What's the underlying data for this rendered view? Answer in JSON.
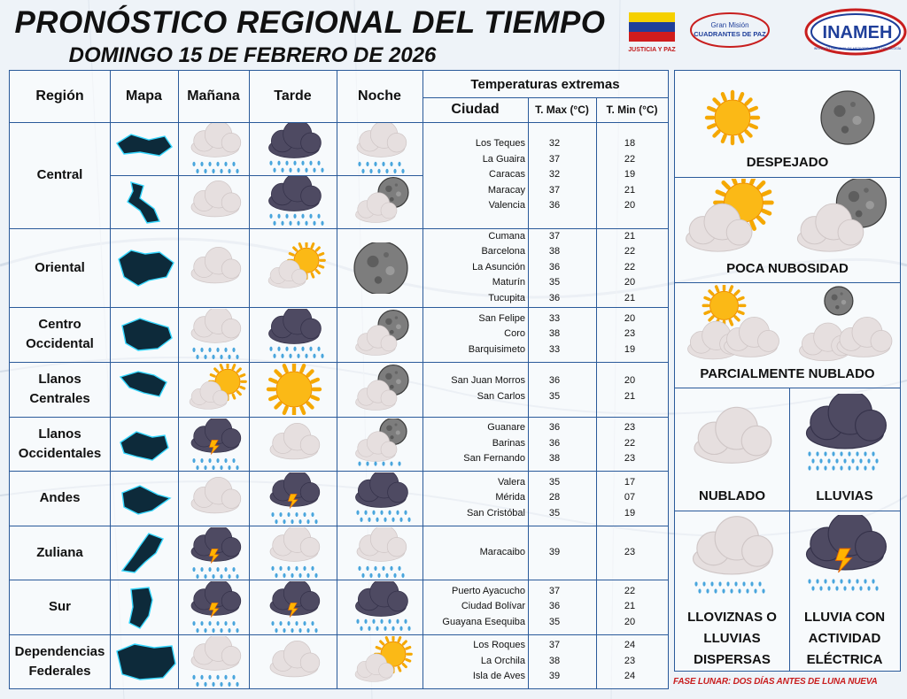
{
  "header": {
    "title": "PRONÓSTICO REGIONAL DEL TIEMPO",
    "date": "DOMINGO 15 DE FEBRERO DE 2026"
  },
  "logos": {
    "logo1_text": "JUSTICIA Y PAZ",
    "logo2_text_top": "Gran Misión",
    "logo2_text_bottom": "CUADRANTES DE PAZ",
    "logo3_text": "INAMEH",
    "logo3_sub": "INSTITUTO NACIONAL DE METEOROLOGÍA E HIDROLOGÍA"
  },
  "table_headers": {
    "region": "Región",
    "map": "Mapa",
    "morning": "Mañana",
    "afternoon": "Tarde",
    "night": "Noche",
    "extremes": "Temperaturas  extremas",
    "city": "Ciudad",
    "tmax": "T. Max (°C)",
    "tmin": "T. Min (°C)"
  },
  "regions": [
    {
      "name": "Central",
      "cities": [
        "Los Teques",
        "La Guaira",
        "Caracas",
        "Maracay",
        "Valencia"
      ],
      "tmax": [
        "32",
        "37",
        "32",
        "37",
        "36"
      ],
      "tmin": [
        "18",
        "22",
        "19",
        "21",
        "20"
      ]
    },
    {
      "name": "Oriental",
      "cities": [
        "Cumana",
        "Barcelona",
        "La Asunción",
        "Maturín",
        "Tucupita"
      ],
      "tmax": [
        "37",
        "38",
        "36",
        "35",
        "36"
      ],
      "tmin": [
        "21",
        "22",
        "22",
        "20",
        "21"
      ]
    },
    {
      "name": "Centro Occidental",
      "cities": [
        "San Felipe",
        "Coro",
        "Barquisimeto"
      ],
      "tmax": [
        "33",
        "38",
        "33"
      ],
      "tmin": [
        "20",
        "23",
        "19"
      ]
    },
    {
      "name": "Llanos Centrales",
      "cities": [
        "San Juan Morros",
        "San Carlos"
      ],
      "tmax": [
        "36",
        "35"
      ],
      "tmin": [
        "20",
        "21"
      ]
    },
    {
      "name": "Llanos Occidentales",
      "cities": [
        "Guanare",
        "Barinas",
        "San Fernando"
      ],
      "tmax": [
        "36",
        "36",
        "38"
      ],
      "tmin": [
        "23",
        "22",
        "23"
      ]
    },
    {
      "name": "Andes",
      "cities": [
        "Valera",
        "Mérida",
        "San Cristóbal"
      ],
      "tmax": [
        "35",
        "28",
        "35"
      ],
      "tmin": [
        "17",
        "07",
        "19"
      ]
    },
    {
      "name": "Zuliana",
      "cities": [
        "Maracaibo"
      ],
      "tmax": [
        "39"
      ],
      "tmin": [
        "23"
      ]
    },
    {
      "name": "Sur",
      "cities": [
        "Puerto Ayacucho",
        "Ciudad Bolívar",
        "Guayana Esequiba"
      ],
      "tmax": [
        "37",
        "36",
        "35"
      ],
      "tmin": [
        "22",
        "21",
        "20"
      ]
    },
    {
      "name": "Dependencias Federales",
      "cities": [
        "Los Roques",
        "La Orchila",
        "Isla de Aves"
      ],
      "tmax": [
        "37",
        "38",
        "39"
      ],
      "tmin": [
        "24",
        "23",
        "24"
      ]
    }
  ],
  "legend": {
    "clear": "DESPEJADO",
    "few_clouds": "POCA NUBOSIDAD",
    "partly_cloudy": "PARCIALMENTE NUBLADO",
    "cloudy": "NUBLADO",
    "rain": "LLUVIAS",
    "drizzle_line1": "LLOVIZNAS O",
    "drizzle_line2": "LLUVIAS",
    "drizzle_line3": "DISPERSAS",
    "storm_line1": "LLUVIA CON",
    "storm_line2": "ACTIVIDAD",
    "storm_line3": "ELÉCTRICA"
  },
  "footnote": "FASE LUNAR: DOS DÍAS ANTES DE LUNA NUEVA",
  "colors": {
    "grid_line": "#2a5a9a",
    "map_fill": "#0d2a3a",
    "map_glow": "#35d7ff",
    "footnote": "#c81e1e"
  }
}
